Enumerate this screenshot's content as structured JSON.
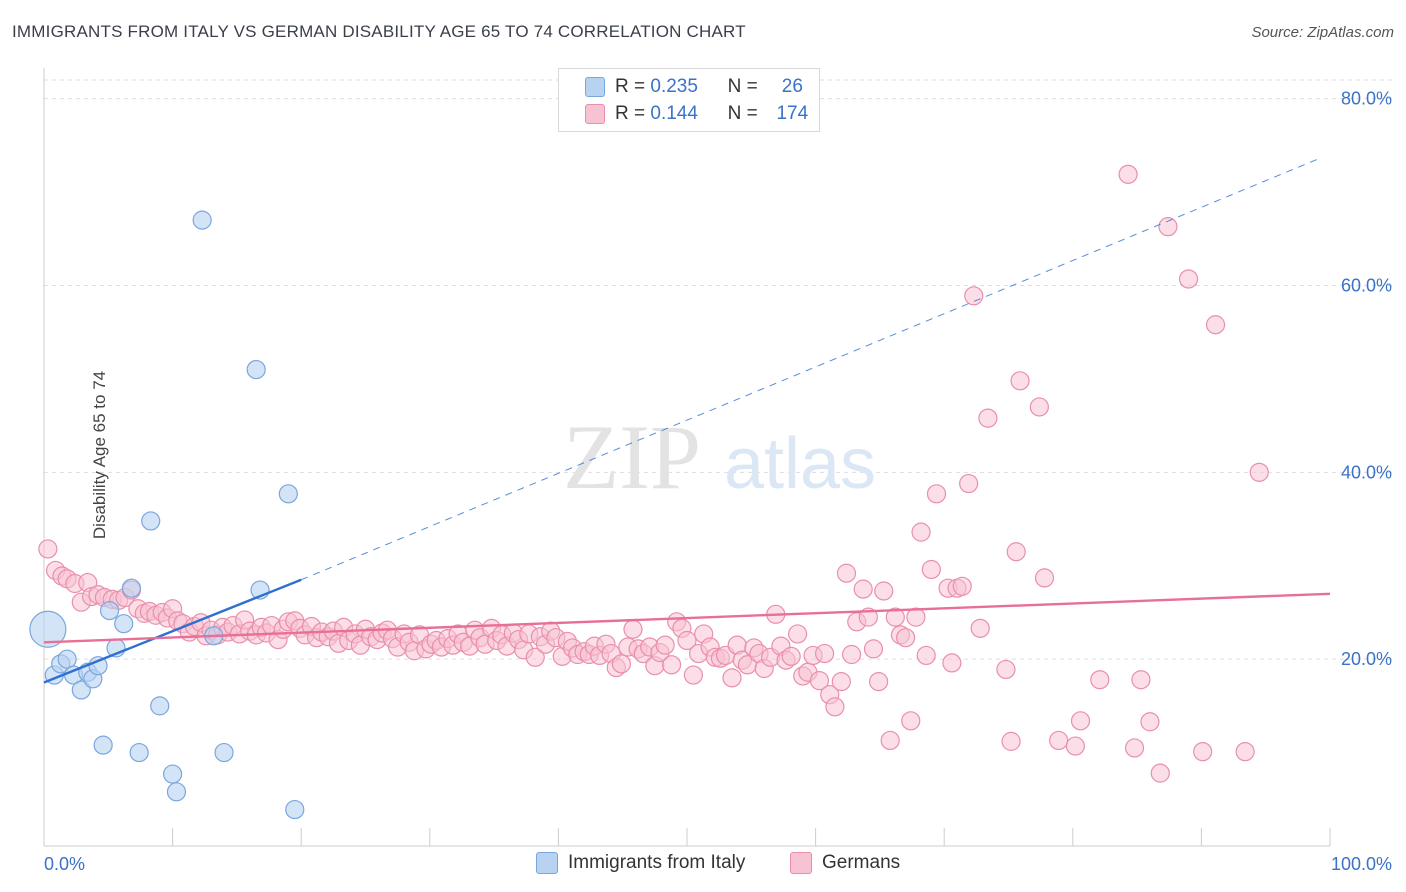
{
  "title": "IMMIGRANTS FROM ITALY VS GERMAN DISABILITY AGE 65 TO 74 CORRELATION CHART",
  "source": "Source: ZipAtlas.com",
  "watermark": {
    "zip": "ZIP",
    "atlas": "atlas"
  },
  "legend": {
    "rows": [
      {
        "r_label": "R =",
        "r_value": "0.235",
        "n_label": "N =",
        "n_value": "26"
      },
      {
        "r_label": "R =",
        "r_value": "0.144",
        "n_label": "N =",
        "n_value": "174"
      }
    ]
  },
  "bottom_legend": {
    "series1": "Immigrants from Italy",
    "series2": "Germans"
  },
  "colors": {
    "blue_fill": "#b8d2f2",
    "blue_stroke": "#7aa6de",
    "blue_line": "#2f6fd0",
    "pink_fill": "#f7c3d3",
    "pink_stroke": "#ea8fab",
    "pink_line": "#e86f97",
    "axis_text": "#3a72c9",
    "grid": "#dddddd"
  },
  "chart_data": {
    "type": "scatter",
    "title": "IMMIGRANTS FROM ITALY VS GERMAN DISABILITY AGE 65 TO 74 CORRELATION CHART",
    "xlabel": "",
    "ylabel": "Disability Age 65 to 74",
    "xlim": [
      0,
      100
    ],
    "ylim": [
      0,
      82
    ],
    "x_tick_labels": [
      "0.0%",
      "100.0%"
    ],
    "y_ticks": [
      20,
      40,
      60,
      80
    ],
    "y_tick_labels": [
      "20.0%",
      "40.0%",
      "60.0%",
      "80.0%"
    ],
    "grid": true,
    "legend_position": "top-center",
    "series": [
      {
        "name": "Immigrants from Italy",
        "R": 0.235,
        "N": 26,
        "trend": {
          "x0": 0,
          "y0": 17.5,
          "x1": 20,
          "y1": 28.5,
          "dashed_to_x": 99,
          "dashed_to_y": 73.5
        },
        "points": [
          [
            0.3,
            23.2
          ],
          [
            0.8,
            18.3
          ],
          [
            1.3,
            19.5
          ],
          [
            1.8,
            20.0
          ],
          [
            2.3,
            18.3
          ],
          [
            2.9,
            16.7
          ],
          [
            3.4,
            18.6
          ],
          [
            3.8,
            17.9
          ],
          [
            4.2,
            19.3
          ],
          [
            4.6,
            10.8
          ],
          [
            5.1,
            25.2
          ],
          [
            5.6,
            21.2
          ],
          [
            6.2,
            23.8
          ],
          [
            6.8,
            27.6
          ],
          [
            7.4,
            10.0
          ],
          [
            8.3,
            34.8
          ],
          [
            9.0,
            15.0
          ],
          [
            10.0,
            7.7
          ],
          [
            10.3,
            5.8
          ],
          [
            12.3,
            67.0
          ],
          [
            13.2,
            22.5
          ],
          [
            14.0,
            10.0
          ],
          [
            16.5,
            51.0
          ],
          [
            16.8,
            27.4
          ],
          [
            19.0,
            37.7
          ],
          [
            19.5,
            3.9
          ]
        ]
      },
      {
        "name": "Germans",
        "R": 0.144,
        "N": 174,
        "trend": {
          "x0": 0,
          "y0": 21.8,
          "x1": 100,
          "y1": 27.0
        },
        "points": [
          [
            0.3,
            31.8
          ],
          [
            0.9,
            29.5
          ],
          [
            1.4,
            28.9
          ],
          [
            1.8,
            28.6
          ],
          [
            2.4,
            28.1
          ],
          [
            2.9,
            26.1
          ],
          [
            3.4,
            28.2
          ],
          [
            3.7,
            26.7
          ],
          [
            4.2,
            26.9
          ],
          [
            4.7,
            26.6
          ],
          [
            5.3,
            26.4
          ],
          [
            5.8,
            26.3
          ],
          [
            6.3,
            26.6
          ],
          [
            6.8,
            27.4
          ],
          [
            7.3,
            25.4
          ],
          [
            7.8,
            24.9
          ],
          [
            8.2,
            25.1
          ],
          [
            8.7,
            24.7
          ],
          [
            9.2,
            25.0
          ],
          [
            9.6,
            24.4
          ],
          [
            10.0,
            25.4
          ],
          [
            10.4,
            24.1
          ],
          [
            10.8,
            23.8
          ],
          [
            11.3,
            22.9
          ],
          [
            11.7,
            23.5
          ],
          [
            12.2,
            23.9
          ],
          [
            12.6,
            22.5
          ],
          [
            13.0,
            23.1
          ],
          [
            13.5,
            22.6
          ],
          [
            13.9,
            23.4
          ],
          [
            14.3,
            22.9
          ],
          [
            14.7,
            23.6
          ],
          [
            15.2,
            22.7
          ],
          [
            15.6,
            24.2
          ],
          [
            16.0,
            23.0
          ],
          [
            16.5,
            22.6
          ],
          [
            16.9,
            23.4
          ],
          [
            17.3,
            22.8
          ],
          [
            17.7,
            23.6
          ],
          [
            18.2,
            22.1
          ],
          [
            18.6,
            23.2
          ],
          [
            19.0,
            24.0
          ],
          [
            19.5,
            24.1
          ],
          [
            19.9,
            23.3
          ],
          [
            20.3,
            22.6
          ],
          [
            20.8,
            23.5
          ],
          [
            21.2,
            22.3
          ],
          [
            21.6,
            22.9
          ],
          [
            22.1,
            22.4
          ],
          [
            22.5,
            23.0
          ],
          [
            22.9,
            21.7
          ],
          [
            23.3,
            23.4
          ],
          [
            23.7,
            22.0
          ],
          [
            24.2,
            22.7
          ],
          [
            24.6,
            21.5
          ],
          [
            25.0,
            23.2
          ],
          [
            25.4,
            22.4
          ],
          [
            25.9,
            22.1
          ],
          [
            26.3,
            22.8
          ],
          [
            26.7,
            23.1
          ],
          [
            27.1,
            22.2
          ],
          [
            27.5,
            21.3
          ],
          [
            28.0,
            22.7
          ],
          [
            28.4,
            21.8
          ],
          [
            28.8,
            20.9
          ],
          [
            29.2,
            22.6
          ],
          [
            29.7,
            21.1
          ],
          [
            30.1,
            21.6
          ],
          [
            30.5,
            22.0
          ],
          [
            30.9,
            21.3
          ],
          [
            31.4,
            22.2
          ],
          [
            31.8,
            21.5
          ],
          [
            32.2,
            22.7
          ],
          [
            32.6,
            21.8
          ],
          [
            33.1,
            21.4
          ],
          [
            33.5,
            23.1
          ],
          [
            33.9,
            22.3
          ],
          [
            34.3,
            21.6
          ],
          [
            34.8,
            23.3
          ],
          [
            35.2,
            22.0
          ],
          [
            35.6,
            22.6
          ],
          [
            36.0,
            21.4
          ],
          [
            36.5,
            22.8
          ],
          [
            36.9,
            22.1
          ],
          [
            37.3,
            21.0
          ],
          [
            37.7,
            22.7
          ],
          [
            38.2,
            20.2
          ],
          [
            38.6,
            22.4
          ],
          [
            39.0,
            21.6
          ],
          [
            39.4,
            23.0
          ],
          [
            39.8,
            22.3
          ],
          [
            40.3,
            20.3
          ],
          [
            40.7,
            21.9
          ],
          [
            41.1,
            21.2
          ],
          [
            41.5,
            20.5
          ],
          [
            42.0,
            20.8
          ],
          [
            42.4,
            20.5
          ],
          [
            42.8,
            21.4
          ],
          [
            43.2,
            20.4
          ],
          [
            43.7,
            21.6
          ],
          [
            44.1,
            20.6
          ],
          [
            44.5,
            19.1
          ],
          [
            44.9,
            19.5
          ],
          [
            45.4,
            21.3
          ],
          [
            45.8,
            23.2
          ],
          [
            46.2,
            21.1
          ],
          [
            46.6,
            20.6
          ],
          [
            47.1,
            21.3
          ],
          [
            47.5,
            19.3
          ],
          [
            47.9,
            20.7
          ],
          [
            48.3,
            21.5
          ],
          [
            48.8,
            19.4
          ],
          [
            49.2,
            24.0
          ],
          [
            49.6,
            23.3
          ],
          [
            50.0,
            22.0
          ],
          [
            50.5,
            18.3
          ],
          [
            50.9,
            20.6
          ],
          [
            51.3,
            22.7
          ],
          [
            51.8,
            21.3
          ],
          [
            52.2,
            20.2
          ],
          [
            52.6,
            20.1
          ],
          [
            53.0,
            20.4
          ],
          [
            53.5,
            18.0
          ],
          [
            53.9,
            21.5
          ],
          [
            54.3,
            19.9
          ],
          [
            54.7,
            19.4
          ],
          [
            55.2,
            21.2
          ],
          [
            55.6,
            20.6
          ],
          [
            56.0,
            19.0
          ],
          [
            56.5,
            20.2
          ],
          [
            56.9,
            24.8
          ],
          [
            57.3,
            21.4
          ],
          [
            57.7,
            19.9
          ],
          [
            58.1,
            20.3
          ],
          [
            58.6,
            22.7
          ],
          [
            59.0,
            18.2
          ],
          [
            59.4,
            18.6
          ],
          [
            59.8,
            20.4
          ],
          [
            60.3,
            17.7
          ],
          [
            60.7,
            20.6
          ],
          [
            61.1,
            16.2
          ],
          [
            61.5,
            14.9
          ],
          [
            62.0,
            17.6
          ],
          [
            62.4,
            29.2
          ],
          [
            62.8,
            20.5
          ],
          [
            63.2,
            24.0
          ],
          [
            63.7,
            27.5
          ],
          [
            64.1,
            24.5
          ],
          [
            64.5,
            21.1
          ],
          [
            64.9,
            17.6
          ],
          [
            65.3,
            27.3
          ],
          [
            65.8,
            11.3
          ],
          [
            66.2,
            24.5
          ],
          [
            66.6,
            22.6
          ],
          [
            67.0,
            22.3
          ],
          [
            67.4,
            13.4
          ],
          [
            67.8,
            24.5
          ],
          [
            68.2,
            33.6
          ],
          [
            68.6,
            20.4
          ],
          [
            69.0,
            29.6
          ],
          [
            69.4,
            37.7
          ],
          [
            70.3,
            27.6
          ],
          [
            70.6,
            19.6
          ],
          [
            71.0,
            27.6
          ],
          [
            71.4,
            27.8
          ],
          [
            71.9,
            38.8
          ],
          [
            72.3,
            58.9
          ],
          [
            72.8,
            23.3
          ],
          [
            73.4,
            45.8
          ],
          [
            74.8,
            18.9
          ],
          [
            75.2,
            11.2
          ],
          [
            75.6,
            31.5
          ],
          [
            75.9,
            49.8
          ],
          [
            77.4,
            47.0
          ],
          [
            77.8,
            28.7
          ],
          [
            78.9,
            11.3
          ],
          [
            80.2,
            10.7
          ],
          [
            80.6,
            13.4
          ],
          [
            82.1,
            17.8
          ],
          [
            84.3,
            71.9
          ],
          [
            84.8,
            10.5
          ],
          [
            85.3,
            17.8
          ],
          [
            86.0,
            13.3
          ],
          [
            86.8,
            7.8
          ],
          [
            87.4,
            66.3
          ],
          [
            89.0,
            60.7
          ],
          [
            90.1,
            10.1
          ],
          [
            91.1,
            55.8
          ],
          [
            93.4,
            10.1
          ],
          [
            94.5,
            40.0
          ]
        ]
      }
    ]
  }
}
